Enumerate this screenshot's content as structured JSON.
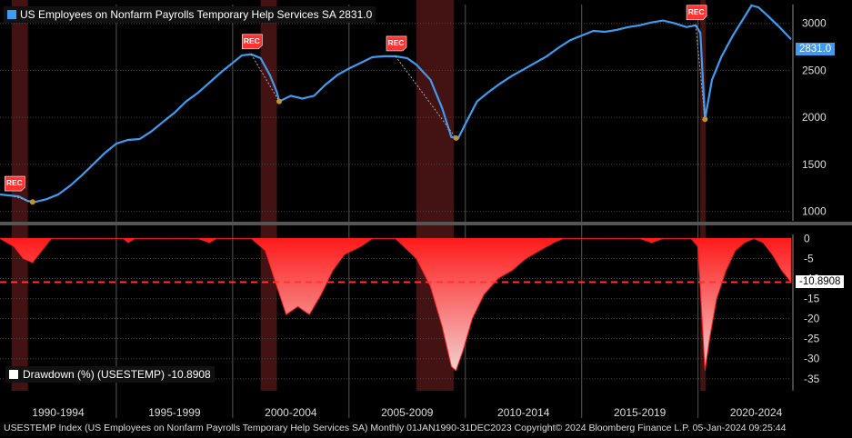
{
  "legend": {
    "main": "US Employees on Nonfarm Payrolls Temporary Help Services SA 2831.0",
    "drawdown": "Drawdown (%) (USESTEMP) -10.8908"
  },
  "footer": "USESTEMP Index (US Employees on Nonfarm Payrolls Temporary Help Services SA)  Monthly 01JAN1990-31DEC2023 Copyright© 2024 Bloomberg Finance L.P. 05-Jan-2024 09:25:44",
  "tags": {
    "last_value": "2831.0",
    "drawdown_value": "-10.8908"
  },
  "colors": {
    "series": "#3f9bf0",
    "drawdown": "#ff1a1a",
    "recession": "#4a1414",
    "dashed": "#ff3333",
    "marker": "#ff3333"
  },
  "recession_label": "REC",
  "chart_data": [
    {
      "type": "line",
      "x_labels": [
        "1990-1994",
        "1995-1999",
        "2000-2004",
        "2005-2009",
        "2010-2014",
        "2015-2019",
        "2020-2024"
      ],
      "y_ticks": [
        1000,
        1500,
        2000,
        2500,
        3000
      ],
      "ylim": [
        900,
        3200
      ],
      "xlim": [
        1990.0,
        2024.0
      ],
      "recessions": [
        [
          1990.5,
          1991.2
        ],
        [
          2001.2,
          2001.9
        ],
        [
          2007.9,
          2009.5
        ],
        [
          2020.1,
          2020.3
        ]
      ],
      "series": [
        {
          "values": [
            [
              1990.0,
              1180
            ],
            [
              1990.8,
              1160
            ],
            [
              1991.2,
              1110
            ],
            [
              1991.5,
              1100
            ],
            [
              1992.0,
              1130
            ],
            [
              1992.5,
              1180
            ],
            [
              1993.0,
              1270
            ],
            [
              1993.5,
              1380
            ],
            [
              1994.0,
              1500
            ],
            [
              1994.5,
              1620
            ],
            [
              1995.0,
              1720
            ],
            [
              1995.5,
              1760
            ],
            [
              1996.0,
              1770
            ],
            [
              1996.5,
              1850
            ],
            [
              1997.0,
              1950
            ],
            [
              1997.5,
              2050
            ],
            [
              1998.0,
              2170
            ],
            [
              1998.5,
              2260
            ],
            [
              1999.0,
              2370
            ],
            [
              1999.5,
              2480
            ],
            [
              2000.0,
              2580
            ],
            [
              2000.4,
              2660
            ],
            [
              2000.8,
              2670
            ],
            [
              2001.2,
              2630
            ],
            [
              2001.6,
              2450
            ],
            [
              2001.9,
              2270
            ],
            [
              2002.0,
              2170
            ],
            [
              2002.5,
              2230
            ],
            [
              2003.0,
              2200
            ],
            [
              2003.5,
              2230
            ],
            [
              2004.0,
              2350
            ],
            [
              2004.5,
              2450
            ],
            [
              2005.0,
              2520
            ],
            [
              2005.5,
              2580
            ],
            [
              2006.0,
              2640
            ],
            [
              2006.5,
              2650
            ],
            [
              2007.0,
              2650
            ],
            [
              2007.5,
              2630
            ],
            [
              2007.9,
              2560
            ],
            [
              2008.5,
              2400
            ],
            [
              2009.0,
              2100
            ],
            [
              2009.4,
              1790
            ],
            [
              2009.7,
              1780
            ],
            [
              2010.0,
              1930
            ],
            [
              2010.5,
              2170
            ],
            [
              2011.0,
              2270
            ],
            [
              2011.5,
              2360
            ],
            [
              2012.0,
              2440
            ],
            [
              2012.5,
              2510
            ],
            [
              2013.0,
              2580
            ],
            [
              2013.5,
              2650
            ],
            [
              2014.0,
              2740
            ],
            [
              2014.5,
              2820
            ],
            [
              2015.0,
              2870
            ],
            [
              2015.5,
              2920
            ],
            [
              2016.0,
              2910
            ],
            [
              2016.5,
              2930
            ],
            [
              2017.0,
              2960
            ],
            [
              2017.5,
              2980
            ],
            [
              2018.0,
              3010
            ],
            [
              2018.5,
              3030
            ],
            [
              2019.0,
              3000
            ],
            [
              2019.5,
              2960
            ],
            [
              2019.9,
              2980
            ],
            [
              2020.1,
              2900
            ],
            [
              2020.3,
              1980
            ],
            [
              2020.6,
              2400
            ],
            [
              2021.0,
              2640
            ],
            [
              2021.5,
              2870
            ],
            [
              2022.0,
              3070
            ],
            [
              2022.3,
              3190
            ],
            [
              2022.6,
              3170
            ],
            [
              2023.0,
              3080
            ],
            [
              2023.5,
              2960
            ],
            [
              2024.0,
              2831
            ]
          ]
        }
      ]
    },
    {
      "type": "area",
      "y_ticks": [
        0,
        -5,
        -10,
        -15,
        -20,
        -25,
        -30,
        -35
      ],
      "ylim": [
        -38,
        1
      ],
      "reference_line": -10.8908,
      "series": [
        {
          "values": [
            [
              1990.0,
              0
            ],
            [
              1990.6,
              -2
            ],
            [
              1991.0,
              -5
            ],
            [
              1991.4,
              -6
            ],
            [
              1991.8,
              -3
            ],
            [
              1992.2,
              0
            ],
            [
              1994.0,
              0
            ],
            [
              1995.3,
              0
            ],
            [
              1995.5,
              -1
            ],
            [
              1995.8,
              0
            ],
            [
              1998.5,
              0
            ],
            [
              1999.0,
              -1
            ],
            [
              1999.3,
              0
            ],
            [
              2000.8,
              0
            ],
            [
              2001.4,
              -3
            ],
            [
              2001.9,
              -12
            ],
            [
              2002.3,
              -19
            ],
            [
              2002.8,
              -17
            ],
            [
              2003.3,
              -19
            ],
            [
              2003.8,
              -14
            ],
            [
              2004.3,
              -8
            ],
            [
              2004.8,
              -4
            ],
            [
              2005.5,
              -2
            ],
            [
              2006.0,
              0
            ],
            [
              2007.0,
              0
            ],
            [
              2007.9,
              -5
            ],
            [
              2008.5,
              -12
            ],
            [
              2009.0,
              -22
            ],
            [
              2009.4,
              -32
            ],
            [
              2009.6,
              -33
            ],
            [
              2009.9,
              -28
            ],
            [
              2010.3,
              -20
            ],
            [
              2010.8,
              -14
            ],
            [
              2011.4,
              -10
            ],
            [
              2012.0,
              -8
            ],
            [
              2012.6,
              -5
            ],
            [
              2013.2,
              -3
            ],
            [
              2013.8,
              -1
            ],
            [
              2014.2,
              0
            ],
            [
              2017.5,
              0
            ],
            [
              2018.0,
              -1
            ],
            [
              2018.5,
              0
            ],
            [
              2019.7,
              0
            ],
            [
              2020.0,
              -2
            ],
            [
              2020.3,
              -33
            ],
            [
              2020.5,
              -25
            ],
            [
              2020.8,
              -15
            ],
            [
              2021.2,
              -8
            ],
            [
              2021.6,
              -3
            ],
            [
              2022.0,
              -1
            ],
            [
              2022.4,
              0
            ],
            [
              2022.8,
              -1
            ],
            [
              2023.2,
              -4
            ],
            [
              2023.6,
              -8
            ],
            [
              2024.0,
              -10.8908
            ]
          ]
        }
      ]
    }
  ]
}
